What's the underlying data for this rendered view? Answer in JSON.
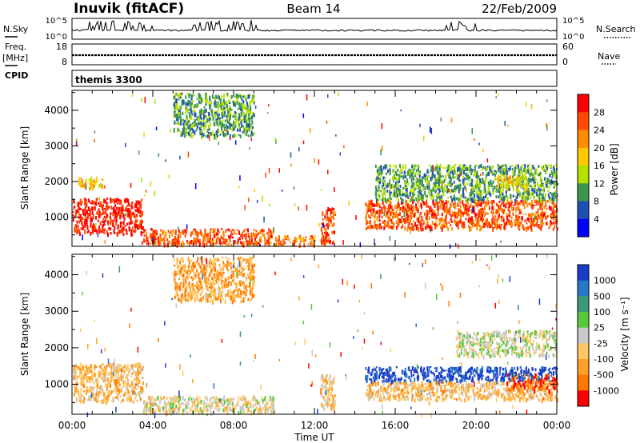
{
  "header": {
    "station": "Inuvik (fitACF)",
    "beam": "Beam 14",
    "date": "22/Feb/2009"
  },
  "side_labels": {
    "nsky": "N.Sky",
    "freq": "Freq.",
    "freq_unit": "[MHz]",
    "cpid": "CPID",
    "nsearch": "N.Search",
    "nave": "Nave"
  },
  "cpid_text": "themis 3300",
  "noise_axis": {
    "left_top": "10^5",
    "left_bottom": "10^0",
    "right_top": "10^5",
    "right_bottom": "10^0"
  },
  "freq_axis": {
    "left_top": "18",
    "left_bottom": "8",
    "right_top": "60",
    "right_bottom": "0"
  },
  "x_axis": {
    "label": "Time UT",
    "ticks": [
      "00:00",
      "04:00",
      "08:00",
      "12:00",
      "16:00",
      "20:00",
      "00:00"
    ]
  },
  "y_axis": {
    "label": "Slant Range [km]",
    "ticks": [
      "1000",
      "2000",
      "3000",
      "4000"
    ],
    "range_km": [
      180,
      4560
    ]
  },
  "power_colorbar": {
    "label": "Power [dB]",
    "ticks": [
      "28",
      "24",
      "20",
      "16",
      "12",
      "8",
      "4"
    ],
    "colors": [
      "#ff0000",
      "#ff4a00",
      "#ff8c00",
      "#ffc800",
      "#b4e000",
      "#3c9650",
      "#1e50b4",
      "#0000ff"
    ]
  },
  "velocity_colorbar": {
    "label": "Velocity [m s⁻¹]",
    "ticks": [
      "1000",
      "500",
      "100",
      "25",
      "-25",
      "-100",
      "-500",
      "-1000"
    ],
    "colors": [
      "#1a3cc8",
      "#2878c8",
      "#3c9678",
      "#5ac83c",
      "#c8c8c8",
      "#ffc864",
      "#ffa028",
      "#ff7800",
      "#ff0000"
    ]
  },
  "chart_data": [
    {
      "type": "heatmap",
      "title": "Power [dB]",
      "xlabel": "Time UT",
      "ylabel": "Slant Range [km]",
      "xlim": [
        "00:00",
        "24:00"
      ],
      "ylim": [
        180,
        4560
      ],
      "value_range": [
        0,
        30
      ],
      "regions": [
        {
          "t": [
            0.0,
            3.5
          ],
          "r": [
            550,
            1550
          ],
          "value": 27
        },
        {
          "t": [
            0.3,
            1.5
          ],
          "r": [
            1850,
            2150
          ],
          "value": 18
        },
        {
          "t": [
            3.5,
            10.0
          ],
          "r": [
            250,
            700
          ],
          "value": 24
        },
        {
          "t": [
            5.0,
            9.0
          ],
          "r": [
            3300,
            4500
          ],
          "value": 10
        },
        {
          "t": [
            10.0,
            12.0
          ],
          "r": [
            250,
            500
          ],
          "value": 22
        },
        {
          "t": [
            12.3,
            13.0
          ],
          "r": [
            300,
            1300
          ],
          "value": 25
        },
        {
          "t": [
            14.5,
            24.0
          ],
          "r": [
            700,
            1500
          ],
          "value": 24
        },
        {
          "t": [
            15.0,
            24.0
          ],
          "r": [
            1500,
            2500
          ],
          "value": 10
        },
        {
          "t": [
            21.0,
            22.5
          ],
          "r": [
            1800,
            2200
          ],
          "value": 16
        }
      ]
    },
    {
      "type": "heatmap",
      "title": "Velocity [m s⁻¹]",
      "xlabel": "Time UT",
      "ylabel": "Slant Range [km]",
      "xlim": [
        "00:00",
        "24:00"
      ],
      "ylim": [
        180,
        4560
      ],
      "value_range": [
        -1000,
        1000
      ],
      "regions": [
        {
          "t": [
            0.0,
            3.5
          ],
          "r": [
            550,
            1600
          ],
          "value": -300
        },
        {
          "t": [
            3.5,
            10.0
          ],
          "r": [
            250,
            700
          ],
          "value": -100
        },
        {
          "t": [
            5.0,
            9.0
          ],
          "r": [
            3300,
            4500
          ],
          "value": -400
        },
        {
          "t": [
            12.3,
            13.0
          ],
          "r": [
            300,
            1300
          ],
          "value": -200
        },
        {
          "t": [
            14.5,
            24.0
          ],
          "r": [
            1100,
            1500
          ],
          "value": 900
        },
        {
          "t": [
            14.5,
            24.0
          ],
          "r": [
            600,
            1100
          ],
          "value": -300
        },
        {
          "t": [
            19.0,
            24.0
          ],
          "r": [
            1800,
            2500
          ],
          "value": 0
        },
        {
          "t": [
            21.5,
            24.0
          ],
          "r": [
            850,
            1300
          ],
          "value": -700
        }
      ]
    }
  ]
}
